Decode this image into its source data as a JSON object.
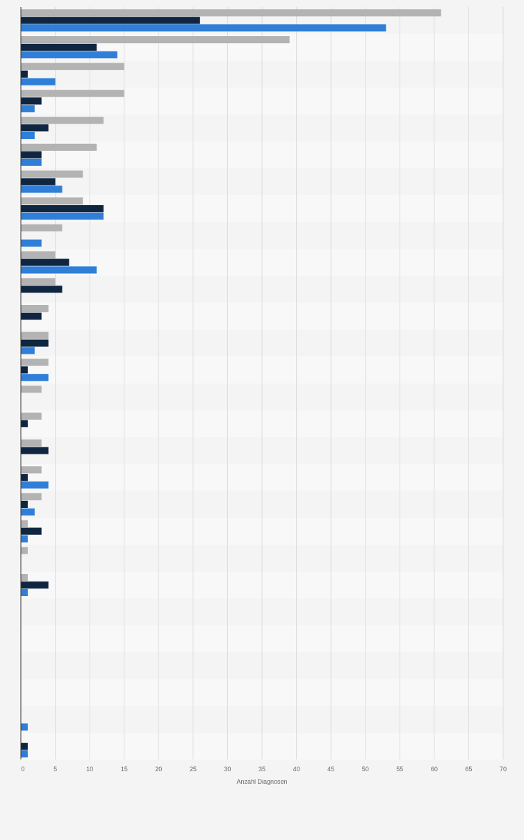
{
  "chart_data": {
    "type": "bar",
    "orientation": "horizontal",
    "categories": [
      "",
      "",
      "",
      "",
      "",
      "",
      "",
      "",
      "",
      "",
      "",
      "",
      "",
      "",
      "",
      "",
      "",
      "",
      "",
      "",
      "",
      "",
      "",
      "",
      "",
      "",
      "",
      ""
    ],
    "series": [
      {
        "color": "#b3b3b3",
        "values": [
          61,
          39,
          15,
          15,
          12,
          11,
          9,
          9,
          6,
          5,
          5,
          4,
          4,
          4,
          3,
          3,
          3,
          3,
          3,
          1,
          1,
          1,
          0,
          0,
          0,
          0,
          0,
          0
        ]
      },
      {
        "color": "#0f2540",
        "values": [
          26,
          11,
          1,
          3,
          4,
          3,
          5,
          12,
          0,
          7,
          6,
          3,
          4,
          1,
          0,
          1,
          4,
          1,
          1,
          3,
          0,
          4,
          0,
          0,
          0,
          0,
          0,
          1
        ]
      },
      {
        "color": "#2f7ed8",
        "values": [
          53,
          14,
          5,
          2,
          2,
          3,
          6,
          12,
          3,
          11,
          0,
          0,
          2,
          4,
          0,
          0,
          0,
          4,
          2,
          1,
          0,
          1,
          0,
          0,
          0,
          0,
          1,
          1
        ]
      }
    ],
    "xlabel": "Anzahl Diagnosen",
    "ylabel": "",
    "xlim": [
      0,
      70
    ],
    "x_ticks": [
      0,
      5,
      10,
      15,
      20,
      25,
      30,
      35,
      40,
      45,
      50,
      55,
      60,
      65,
      70
    ],
    "grid": true,
    "legend": "none"
  },
  "colors": {
    "background": "#f4f4f4",
    "band_alt": "#f8f8f8",
    "gridline": "#dddddd",
    "axis": "#333333"
  }
}
